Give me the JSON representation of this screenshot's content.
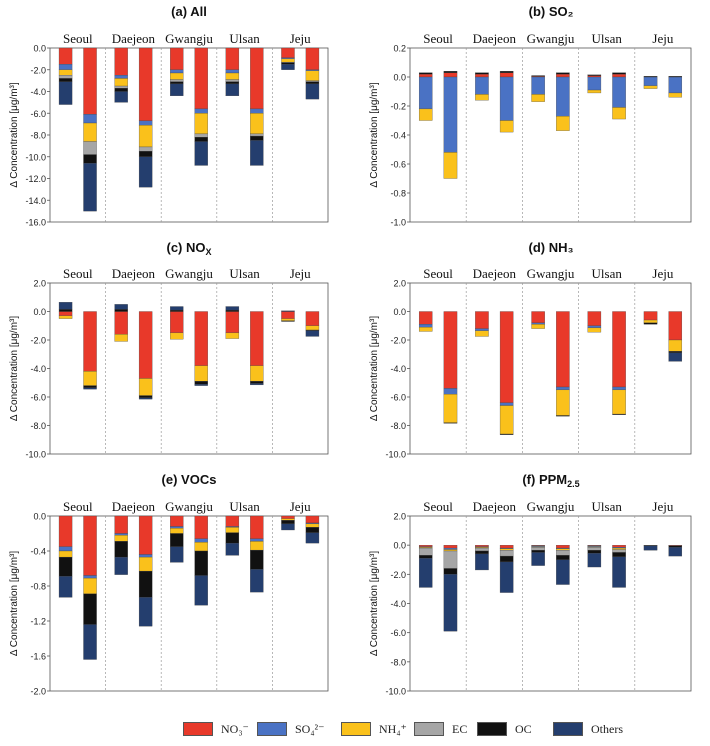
{
  "legend": [
    {
      "key": "NO3",
      "label": "NO₃⁻",
      "color": "#E8392A"
    },
    {
      "key": "SO4",
      "label": "SO₄²⁻",
      "color": "#4A72C4"
    },
    {
      "key": "NH4",
      "label": "NH₄⁺",
      "color": "#FAC11B"
    },
    {
      "key": "EC",
      "label": "EC",
      "color": "#A6A6A6"
    },
    {
      "key": "OC",
      "label": "OC",
      "color": "#111111"
    },
    {
      "key": "Others",
      "label": "Others",
      "color": "#243E6E"
    }
  ],
  "chart_data": [
    {
      "type": "bar",
      "stacked": true,
      "id": "a",
      "title": "(a) All",
      "categories": [
        "Seoul",
        "Daejeon",
        "Gwangju",
        "Ulsan",
        "Jeju"
      ],
      "ylabel": "Δ Concentration [μg/m³]",
      "ylim": [
        -16,
        0
      ],
      "ticks": [
        0,
        -2,
        -4,
        -6,
        -8,
        -10,
        -12,
        -14,
        -16
      ],
      "tick_labels": [
        "0.0",
        "-2.0",
        "-4.0",
        "-6.0",
        "-8.0",
        "-10.0",
        "-12.0",
        "-14.0",
        "-16.0"
      ],
      "bars": [
        {
          "category": "Seoul",
          "components": {
            "NO3": -1.5,
            "SO4": -0.5,
            "NH4": -0.5,
            "EC": -0.3,
            "OC": -0.3,
            "Others": -2.1
          }
        },
        {
          "category": "Seoul",
          "components": {
            "NO3": -6.1,
            "SO4": -0.8,
            "NH4": -1.7,
            "EC": -1.2,
            "OC": -0.8,
            "Others": -4.4
          }
        },
        {
          "category": "Daejeon",
          "components": {
            "NO3": -2.5,
            "SO4": -0.3,
            "NH4": -0.7,
            "EC": -0.2,
            "OC": -0.3,
            "Others": -1.0
          }
        },
        {
          "category": "Daejeon",
          "components": {
            "NO3": -6.7,
            "SO4": -0.4,
            "NH4": -2.0,
            "EC": -0.4,
            "OC": -0.5,
            "Others": -2.8
          }
        },
        {
          "category": "Gwangju",
          "components": {
            "NO3": -2.0,
            "SO4": -0.3,
            "NH4": -0.6,
            "EC": -0.2,
            "OC": -0.2,
            "Others": -1.1
          }
        },
        {
          "category": "Gwangju",
          "components": {
            "NO3": -5.6,
            "SO4": -0.4,
            "NH4": -1.9,
            "EC": -0.3,
            "OC": -0.4,
            "Others": -2.2
          }
        },
        {
          "category": "Ulsan",
          "components": {
            "NO3": -2.0,
            "SO4": -0.3,
            "NH4": -0.6,
            "EC": -0.2,
            "OC": -0.2,
            "Others": -1.1
          }
        },
        {
          "category": "Ulsan",
          "components": {
            "NO3": -5.6,
            "SO4": -0.4,
            "NH4": -1.9,
            "EC": -0.2,
            "OC": -0.4,
            "Others": -2.3
          }
        },
        {
          "category": "Jeju",
          "components": {
            "NO3": -0.9,
            "SO4": -0.1,
            "NH4": -0.3,
            "EC": -0.05,
            "OC": -0.15,
            "Others": -0.5
          }
        },
        {
          "category": "Jeju",
          "components": {
            "NO3": -2.0,
            "SO4": -0.1,
            "NH4": -0.9,
            "EC": -0.1,
            "OC": -0.2,
            "Others": -1.4
          }
        }
      ]
    },
    {
      "type": "bar",
      "stacked": true,
      "id": "b",
      "title": "(b) SO₂",
      "categories": [
        "Seoul",
        "Daejeon",
        "Gwangju",
        "Ulsan",
        "Jeju"
      ],
      "ylabel": "Δ Concentration [μg/m³]",
      "ylim": [
        -1.0,
        0.2
      ],
      "ticks": [
        0.2,
        0,
        -0.2,
        -0.4,
        -0.6,
        -0.8,
        -1.0
      ],
      "tick_labels": [
        "0.2",
        "0.0",
        "-0.2",
        "-0.4",
        "-0.6",
        "-0.8",
        "-1.0"
      ],
      "bars": [
        {
          "category": "Seoul",
          "components": {
            "NO3": 0.02,
            "SO4": -0.22,
            "NH4": -0.08,
            "OC": 0.01
          }
        },
        {
          "category": "Seoul",
          "components": {
            "NO3": 0.03,
            "SO4": -0.52,
            "NH4": -0.18,
            "OC": 0.01
          }
        },
        {
          "category": "Daejeon",
          "components": {
            "NO3": 0.02,
            "SO4": -0.12,
            "NH4": -0.04,
            "OC": 0.01
          }
        },
        {
          "category": "Daejeon",
          "components": {
            "NO3": 0.03,
            "SO4": -0.3,
            "NH4": -0.08,
            "OC": 0.01
          }
        },
        {
          "category": "Gwangju",
          "components": {
            "NO3": 0.005,
            "SO4": -0.12,
            "NH4": -0.05,
            "OC": 0.005
          }
        },
        {
          "category": "Gwangju",
          "components": {
            "NO3": 0.02,
            "SO4": -0.27,
            "NH4": -0.1,
            "OC": 0.01
          }
        },
        {
          "category": "Ulsan",
          "components": {
            "NO3": 0.01,
            "SO4": -0.09,
            "NH4": -0.02,
            "OC": 0.005
          }
        },
        {
          "category": "Ulsan",
          "components": {
            "NO3": 0.02,
            "SO4": -0.21,
            "NH4": -0.08,
            "OC": 0.01
          }
        },
        {
          "category": "Jeju",
          "components": {
            "SO4": -0.06,
            "NH4": -0.02,
            "OC": 0.005
          }
        },
        {
          "category": "Jeju",
          "components": {
            "SO4": -0.11,
            "NH4": -0.03,
            "OC": 0.005
          }
        }
      ]
    },
    {
      "type": "bar",
      "stacked": true,
      "id": "c",
      "title": "(c) NO",
      "title_sub": "X",
      "categories": [
        "Seoul",
        "Daejeon",
        "Gwangju",
        "Ulsan",
        "Jeju"
      ],
      "ylabel": "Δ Concentration [μg/m³]",
      "ylim": [
        -10,
        2
      ],
      "ticks": [
        2,
        0,
        -2,
        -4,
        -6,
        -8,
        -10
      ],
      "tick_labels": [
        "2.0",
        "0.0",
        "-2.0",
        "-4.0",
        "-6.0",
        "-8.0",
        "-10.0"
      ],
      "bars": [
        {
          "category": "Seoul",
          "components": {
            "Others": 0.5,
            "OC": 0.15,
            "NO3": -0.3,
            "NH4": -0.2
          }
        },
        {
          "category": "Seoul",
          "components": {
            "NO3": -4.2,
            "NH4": -1.0,
            "OC": -0.15,
            "Others": -0.1
          }
        },
        {
          "category": "Daejeon",
          "components": {
            "Others": 0.35,
            "OC": 0.15,
            "NO3": -1.6,
            "NH4": -0.5
          }
        },
        {
          "category": "Daejeon",
          "components": {
            "NO3": -4.7,
            "NH4": -1.2,
            "OC": -0.15,
            "Others": -0.1
          }
        },
        {
          "category": "Gwangju",
          "components": {
            "Others": 0.25,
            "OC": 0.1,
            "NO3": -1.5,
            "NH4": -0.45
          }
        },
        {
          "category": "Gwangju",
          "components": {
            "NO3": -3.8,
            "NH4": -1.1,
            "OC": -0.2,
            "Others": -0.1
          }
        },
        {
          "category": "Ulsan",
          "components": {
            "Others": 0.25,
            "OC": 0.1,
            "NO3": -1.5,
            "NH4": -0.4
          }
        },
        {
          "category": "Ulsan",
          "components": {
            "NO3": -3.8,
            "NH4": -1.1,
            "OC": -0.15,
            "Others": -0.1
          }
        },
        {
          "category": "Jeju",
          "components": {
            "Others": 0.05,
            "NO3": -0.5,
            "NH4": -0.15,
            "OC": -0.05
          }
        },
        {
          "category": "Jeju",
          "components": {
            "NO3": -1.0,
            "NH4": -0.3,
            "OC": -0.05,
            "Others": -0.4
          }
        }
      ]
    },
    {
      "type": "bar",
      "stacked": true,
      "id": "d",
      "title": "(d) NH₃",
      "categories": [
        "Seoul",
        "Daejeon",
        "Gwangju",
        "Ulsan",
        "Jeju"
      ],
      "ylabel": "Δ Concentration [μg/m³]",
      "ylim": [
        -10,
        2
      ],
      "ticks": [
        2,
        0,
        -2,
        -4,
        -6,
        -8,
        -10
      ],
      "tick_labels": [
        "2.0",
        "0.0",
        "-2.0",
        "-4.0",
        "-6.0",
        "-8.0",
        "-10.0"
      ],
      "bars": [
        {
          "category": "Seoul",
          "components": {
            "NO3": -0.9,
            "SO4": -0.2,
            "NH4": -0.3
          }
        },
        {
          "category": "Seoul",
          "components": {
            "NO3": -5.4,
            "SO4": -0.4,
            "NH4": -2.0,
            "OC": -0.05
          }
        },
        {
          "category": "Daejeon",
          "components": {
            "NO3": -1.2,
            "SO4": -0.15,
            "NH4": -0.4
          }
        },
        {
          "category": "Daejeon",
          "components": {
            "NO3": -6.4,
            "SO4": -0.2,
            "NH4": -2.0,
            "OC": -0.05
          }
        },
        {
          "category": "Gwangju",
          "components": {
            "NO3": -0.8,
            "SO4": -0.1,
            "NH4": -0.3
          }
        },
        {
          "category": "Gwangju",
          "components": {
            "NO3": -5.3,
            "SO4": -0.2,
            "NH4": -1.8,
            "OC": -0.05
          }
        },
        {
          "category": "Ulsan",
          "components": {
            "NO3": -1.0,
            "SO4": -0.15,
            "NH4": -0.3
          }
        },
        {
          "category": "Ulsan",
          "components": {
            "NO3": -5.3,
            "SO4": -0.2,
            "NH4": -1.7,
            "OC": -0.05
          }
        },
        {
          "category": "Jeju",
          "components": {
            "NO3": -0.6,
            "NH4": -0.2,
            "OC": -0.1
          }
        },
        {
          "category": "Jeju",
          "components": {
            "NO3": -2.0,
            "NH4": -0.8,
            "OC": -0.1,
            "Others": -0.6
          }
        }
      ]
    },
    {
      "type": "bar",
      "stacked": true,
      "id": "e",
      "title": "(e) VOCs",
      "categories": [
        "Seoul",
        "Daejeon",
        "Gwangju",
        "Ulsan",
        "Jeju"
      ],
      "ylabel": "Δ Concentration [μg/m³]",
      "ylim": [
        -2.0,
        0
      ],
      "ticks": [
        0,
        -0.4,
        -0.8,
        -1.2,
        -1.6,
        -2.0
      ],
      "tick_labels": [
        "0.0",
        "-0.4",
        "-0.8",
        "-1.2",
        "-1.6",
        "-2.0"
      ],
      "bars": [
        {
          "category": "Seoul",
          "components": {
            "NO3": -0.35,
            "SO4": -0.05,
            "NH4": -0.07,
            "OC": -0.22,
            "Others": -0.24
          }
        },
        {
          "category": "Seoul",
          "components": {
            "NO3": -0.68,
            "SO4": -0.03,
            "NH4": -0.18,
            "OC": -0.35,
            "Others": -0.4
          }
        },
        {
          "category": "Daejeon",
          "components": {
            "NO3": -0.2,
            "SO4": -0.02,
            "NH4": -0.07,
            "OC": -0.18,
            "Others": -0.2
          }
        },
        {
          "category": "Daejeon",
          "components": {
            "NO3": -0.44,
            "SO4": -0.03,
            "NH4": -0.16,
            "OC": -0.3,
            "Others": -0.33
          }
        },
        {
          "category": "Gwangju",
          "components": {
            "NO3": -0.12,
            "SO4": -0.02,
            "NH4": -0.06,
            "OC": -0.15,
            "Others": -0.18
          }
        },
        {
          "category": "Gwangju",
          "components": {
            "NO3": -0.26,
            "SO4": -0.04,
            "NH4": -0.1,
            "OC": -0.28,
            "Others": -0.34
          }
        },
        {
          "category": "Ulsan",
          "components": {
            "NO3": -0.12,
            "SO4": -0.01,
            "NH4": -0.06,
            "OC": -0.12,
            "Others": -0.14
          }
        },
        {
          "category": "Ulsan",
          "components": {
            "NO3": -0.26,
            "SO4": -0.03,
            "NH4": -0.1,
            "OC": -0.22,
            "Others": -0.26
          }
        },
        {
          "category": "Jeju",
          "components": {
            "NO3": -0.03,
            "NH4": -0.02,
            "OC": -0.04,
            "Others": -0.07
          }
        },
        {
          "category": "Jeju",
          "components": {
            "NO3": -0.08,
            "SO4": -0.01,
            "NH4": -0.04,
            "OC": -0.06,
            "Others": -0.12
          }
        }
      ]
    },
    {
      "type": "bar",
      "stacked": true,
      "id": "f",
      "title": "(f) PPM",
      "title_sub": "2.5",
      "categories": [
        "Seoul",
        "Daejeon",
        "Gwangju",
        "Ulsan",
        "Jeju"
      ],
      "ylabel": "Δ Concentration [μg/m³]",
      "ylim": [
        -10,
        2
      ],
      "ticks": [
        2,
        0,
        -2,
        -4,
        -6,
        -8,
        -10
      ],
      "tick_labels": [
        "2.0",
        "0.0",
        "-2.0",
        "-4.0",
        "-6.0",
        "-8.0",
        "-10.0"
      ],
      "bars": [
        {
          "category": "Seoul",
          "components": {
            "NO3": -0.1,
            "SO4": -0.05,
            "NH4": -0.05,
            "EC": -0.5,
            "OC": -0.2,
            "Others": -2.0
          }
        },
        {
          "category": "Seoul",
          "components": {
            "NO3": -0.2,
            "SO4": -0.1,
            "NH4": -0.1,
            "EC": -1.2,
            "OC": -0.4,
            "Others": -3.9
          }
        },
        {
          "category": "Daejeon",
          "components": {
            "NO3": -0.1,
            "SO4": -0.05,
            "NH4": -0.05,
            "EC": -0.2,
            "OC": -0.2,
            "Others": -1.1
          }
        },
        {
          "category": "Daejeon",
          "components": {
            "NO3": -0.2,
            "SO4": -0.05,
            "NH4": -0.1,
            "EC": -0.4,
            "OC": -0.4,
            "Others": -2.1
          }
        },
        {
          "category": "Gwangju",
          "components": {
            "NO3": -0.05,
            "SO4": -0.05,
            "NH4": -0.05,
            "EC": -0.2,
            "OC": -0.15,
            "Others": -0.9
          }
        },
        {
          "category": "Gwangju",
          "components": {
            "NO3": -0.2,
            "SO4": -0.05,
            "NH4": -0.1,
            "EC": -0.35,
            "OC": -0.3,
            "Others": -1.7
          }
        },
        {
          "category": "Ulsan",
          "components": {
            "NO3": -0.05,
            "SO4": -0.05,
            "NH4": -0.05,
            "EC": -0.2,
            "OC": -0.2,
            "Others": -0.95
          }
        },
        {
          "category": "Ulsan",
          "components": {
            "NO3": -0.15,
            "SO4": -0.05,
            "NH4": -0.1,
            "EC": -0.2,
            "OC": -0.3,
            "Others": -2.1
          }
        },
        {
          "category": "Jeju",
          "components": {
            "OC": -0.05,
            "Others": -0.3
          }
        },
        {
          "category": "Jeju",
          "components": {
            "NO3": -0.05,
            "OC": -0.1,
            "Others": -0.6
          }
        }
      ]
    }
  ]
}
